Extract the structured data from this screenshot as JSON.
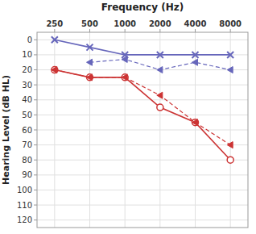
{
  "chart_data": {
    "type": "line",
    "xlabel": "Frequency (Hz)",
    "ylabel": "Hearing Level (dB HL)",
    "categories": [
      "250",
      "500",
      "1000",
      "2000",
      "4000",
      "8000"
    ],
    "series": [
      {
        "color": "#6666bb",
        "line_style": "solid",
        "marker": "x",
        "values": [
          0,
          5,
          10,
          10,
          10,
          10
        ]
      },
      {
        "color": "#6666bb",
        "line_style": "dashed",
        "marker": "triangle-left",
        "values": [
          null,
          15,
          13,
          20,
          15,
          20
        ]
      },
      {
        "color": "#cc3333",
        "line_style": "solid",
        "marker": "circle-open",
        "values": [
          20,
          25,
          25,
          45,
          55,
          80
        ]
      },
      {
        "color": "#cc3333",
        "line_style": "dashed",
        "marker": "triangle-left",
        "values": [
          20,
          25,
          25,
          37,
          55,
          70
        ]
      }
    ],
    "ylim": [
      125,
      -5
    ],
    "yticks": [
      0,
      10,
      20,
      30,
      40,
      50,
      60,
      70,
      80,
      90,
      100,
      110,
      120
    ],
    "grid": true
  }
}
